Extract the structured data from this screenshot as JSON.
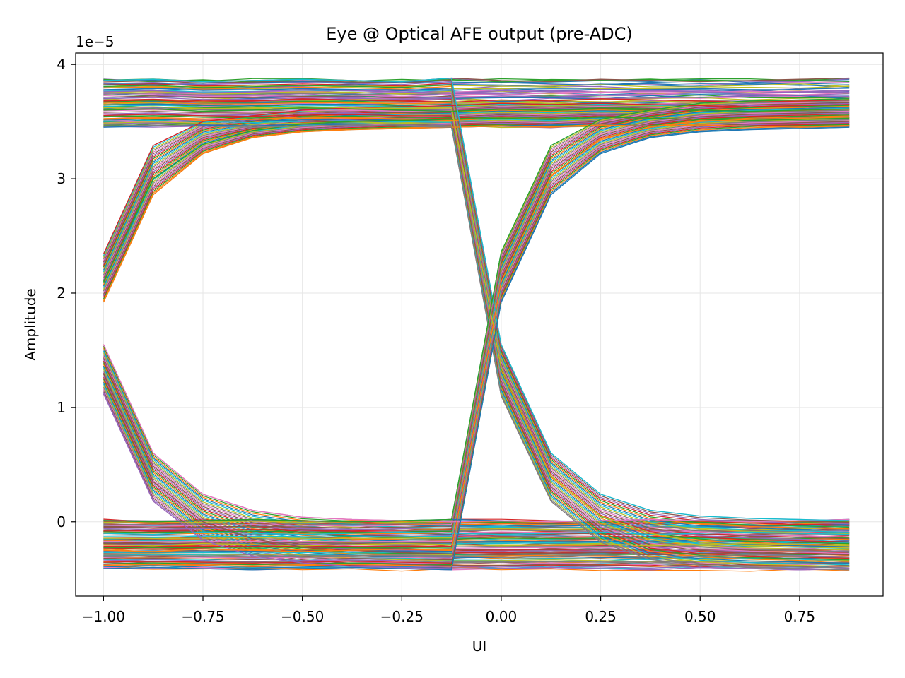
{
  "chart_data": {
    "type": "line",
    "title": "Eye @ Optical AFE output (pre-ADC)",
    "xlabel": "UI",
    "ylabel": "Amplitude",
    "y_offset_label": "1e−5",
    "xlim": [
      -1.07,
      0.96
    ],
    "ylim": [
      -0.65,
      4.1
    ],
    "x_ticks": [
      -1.0,
      -0.75,
      -0.5,
      -0.25,
      0.0,
      0.25,
      0.5,
      0.75
    ],
    "x_tick_labels": [
      "−1.00",
      "−0.75",
      "−0.50",
      "−0.25",
      "0.00",
      "0.25",
      "0.50",
      "0.75"
    ],
    "y_ticks": [
      0,
      1,
      2,
      3,
      4
    ],
    "y_tick_labels": [
      "0",
      "1",
      "2",
      "3",
      "4"
    ],
    "grid": true,
    "x": [
      -1.0,
      -0.875,
      -0.75,
      -0.625,
      -0.5,
      -0.375,
      -0.25,
      -0.125,
      0.0,
      0.125,
      0.25,
      0.375,
      0.5,
      0.625,
      0.75,
      0.875
    ],
    "level_ranges": {
      "high": [
        3.45,
        3.88
      ],
      "low": [
        -0.42,
        0.02
      ]
    },
    "crossing": {
      "x": 0.0,
      "y": 1.72
    },
    "series": [
      {
        "values": [
          3.45,
          3.46,
          3.47,
          3.46,
          3.48,
          3.47,
          3.46,
          3.45,
          3.46,
          3.47,
          3.48,
          3.46,
          3.47,
          3.46,
          3.45,
          3.46
        ]
      },
      {
        "values": [
          3.52,
          3.53,
          3.51,
          3.52,
          3.54,
          3.53,
          3.52,
          3.51,
          3.53,
          3.52,
          3.54,
          3.53,
          3.52,
          3.51,
          3.52,
          3.53
        ]
      },
      {
        "values": [
          3.6,
          3.61,
          3.59,
          3.6,
          3.62,
          3.61,
          3.6,
          3.59,
          3.61,
          3.6,
          3.62,
          3.61,
          3.6,
          3.59,
          3.6,
          3.61
        ]
      },
      {
        "values": [
          3.68,
          3.69,
          3.67,
          3.68,
          3.7,
          3.69,
          3.68,
          3.67,
          3.69,
          3.68,
          3.7,
          3.69,
          3.68,
          3.67,
          3.68,
          3.69
        ]
      },
      {
        "values": [
          3.76,
          3.77,
          3.75,
          3.76,
          3.78,
          3.77,
          3.76,
          3.75,
          3.77,
          3.76,
          3.78,
          3.77,
          3.76,
          3.75,
          3.76,
          3.77
        ]
      },
      {
        "values": [
          3.86,
          3.87,
          3.85,
          3.86,
          3.87,
          3.86,
          3.85,
          3.88,
          3.86,
          3.85,
          3.87,
          3.86,
          3.85,
          3.86,
          3.87,
          3.88
        ]
      },
      {
        "values": [
          -0.4,
          -0.41,
          -0.4,
          -0.42,
          -0.41,
          -0.4,
          -0.41,
          -0.42,
          -0.41,
          -0.4,
          -0.41,
          -0.42,
          -0.4,
          -0.41,
          -0.42,
          -0.41
        ]
      },
      {
        "values": [
          -0.3,
          -0.31,
          -0.3,
          -0.29,
          -0.31,
          -0.3,
          -0.29,
          -0.3,
          -0.31,
          -0.3,
          -0.29,
          -0.31,
          -0.3,
          -0.29,
          -0.3,
          -0.31
        ]
      },
      {
        "values": [
          -0.2,
          -0.21,
          -0.19,
          -0.2,
          -0.21,
          -0.2,
          -0.19,
          -0.2,
          -0.21,
          -0.2,
          -0.19,
          -0.21,
          -0.2,
          -0.19,
          -0.2,
          -0.21
        ]
      },
      {
        "values": [
          -0.1,
          -0.11,
          -0.09,
          -0.1,
          -0.11,
          -0.1,
          -0.09,
          -0.1,
          -0.11,
          -0.1,
          -0.09,
          -0.11,
          -0.1,
          -0.09,
          -0.1,
          -0.11
        ]
      },
      {
        "values": [
          0.01,
          0.0,
          0.01,
          0.02,
          0.01,
          0.0,
          0.01,
          0.02,
          0.01,
          0.0,
          0.01,
          0.02,
          0.01,
          0.0,
          0.01,
          0.02
        ]
      },
      {
        "values": [
          1.92,
          2.86,
          3.22,
          3.36,
          3.41,
          3.43,
          3.44,
          3.45,
          3.46,
          3.45,
          3.47,
          3.46,
          3.47,
          3.46,
          3.45,
          3.46
        ]
      },
      {
        "values": [
          2.1,
          3.0,
          3.3,
          3.42,
          3.48,
          3.5,
          3.51,
          3.52,
          3.53,
          3.52,
          3.54,
          3.53,
          3.52,
          3.51,
          3.52,
          3.53
        ]
      },
      {
        "values": [
          2.34,
          3.29,
          3.5,
          3.55,
          3.6,
          3.62,
          3.63,
          3.64,
          3.66,
          3.65,
          3.66,
          3.65,
          3.64,
          3.63,
          3.64,
          3.65
        ]
      },
      {
        "values": [
          1.12,
          0.18,
          -0.16,
          -0.3,
          -0.36,
          -0.39,
          -0.4,
          -0.41,
          -0.41,
          -0.4,
          -0.41,
          -0.42,
          -0.4,
          -0.41,
          -0.42,
          -0.41
        ]
      },
      {
        "values": [
          1.3,
          0.35,
          0.0,
          -0.15,
          -0.22,
          -0.25,
          -0.27,
          -0.28,
          -0.29,
          -0.28,
          -0.27,
          -0.29,
          -0.28,
          -0.27,
          -0.28,
          -0.29
        ]
      },
      {
        "values": [
          1.55,
          0.6,
          0.24,
          0.1,
          0.04,
          0.02,
          0.01,
          0.0,
          0.01,
          0.0,
          0.01,
          0.02,
          0.01,
          0.0,
          0.01,
          0.02
        ]
      },
      {
        "values": [
          3.46,
          3.47,
          3.46,
          3.45,
          3.46,
          3.47,
          3.46,
          3.45,
          1.1,
          0.18,
          -0.18,
          -0.33,
          -0.38,
          -0.4,
          -0.41,
          -0.42
        ]
      },
      {
        "values": [
          3.62,
          3.63,
          3.61,
          3.62,
          3.63,
          3.62,
          3.61,
          3.62,
          1.35,
          0.4,
          0.05,
          -0.1,
          -0.18,
          -0.21,
          -0.22,
          -0.23
        ]
      },
      {
        "values": [
          3.86,
          3.87,
          3.85,
          3.86,
          3.87,
          3.86,
          3.85,
          3.88,
          1.55,
          0.6,
          0.24,
          0.1,
          0.05,
          0.03,
          0.02,
          0.01
        ]
      },
      {
        "values": [
          -0.41,
          -0.4,
          -0.41,
          -0.42,
          -0.41,
          -0.4,
          -0.41,
          -0.42,
          1.92,
          2.86,
          3.22,
          3.36,
          3.41,
          3.43,
          3.44,
          3.45
        ]
      },
      {
        "values": [
          -0.25,
          -0.26,
          -0.24,
          -0.25,
          -0.26,
          -0.25,
          -0.24,
          -0.25,
          2.1,
          3.02,
          3.35,
          3.45,
          3.5,
          3.52,
          3.53,
          3.54
        ]
      },
      {
        "values": [
          0.01,
          0.0,
          0.01,
          0.02,
          0.01,
          0.0,
          0.01,
          0.02,
          2.36,
          3.29,
          3.52,
          3.6,
          3.66,
          3.68,
          3.69,
          3.7
        ]
      }
    ]
  }
}
